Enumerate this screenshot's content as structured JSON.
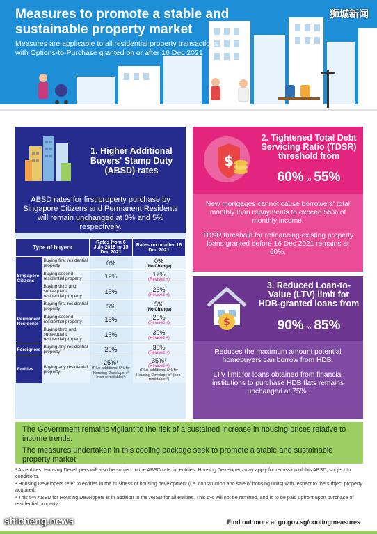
{
  "header": {
    "title": "Measures to promote a stable and sustainable property market",
    "subtitle": "Measures are applicable to all residential property transactions with Options-to-Purchase granted on or after 16 Dec 2021",
    "watermark": "狮城新闻"
  },
  "section1": {
    "title": "1. Higher Additional Buyers' Stamp Duty (ABSD) rates",
    "intro_before": "ABSD rates for first property purchase by Singapore Citizens and Permanent Residents will remain ",
    "intro_underlined": "unchanged",
    "intro_after": " at 0% and 5% respectively.",
    "table": {
      "col_buyers": "Type of buyers",
      "col_from": "Rates from 6 July 2018 to 15 Dec 2021",
      "col_after": "Rates on or after 16 Dec 2021",
      "groups": [
        {
          "group": "Singapore Citizens",
          "rows": [
            {
              "type": "Buying first residential property",
              "from": "0%",
              "after": "0%",
              "change": "(No Change)"
            },
            {
              "type": "Buying second residential property",
              "from": "12%",
              "after": "17%",
              "change": "(Revised +)"
            },
            {
              "type": "Buying third and subsequent residential property",
              "from": "15%",
              "after": "25%",
              "change": "(Revised +)"
            }
          ]
        },
        {
          "group": "Permanent Residents",
          "rows": [
            {
              "type": "Buying first residential property",
              "from": "5%",
              "after": "5%",
              "change": "(No Change)"
            },
            {
              "type": "Buying second residential property",
              "from": "15%",
              "after": "25%",
              "change": "(Revised +)"
            },
            {
              "type": "Buying third and subsequent residential property",
              "from": "15%",
              "after": "30%",
              "change": "(Revised +)"
            }
          ]
        },
        {
          "group": "Foreigners",
          "rows": [
            {
              "type": "Buying any residential property",
              "from": "20%",
              "after": "30%",
              "change": "(Revised +)"
            }
          ]
        },
        {
          "group": "Entities",
          "rows": [
            {
              "type": "Buying any residential property",
              "from": "25%¹",
              "from_note": "(Plus additional 5% for Housing Developers² (non-remittable)³)",
              "after": "35%¹",
              "change": "(Revised +)",
              "after_note": "(Plus additional 5% for Housing Developers² (non-remittable)³)"
            }
          ]
        }
      ]
    }
  },
  "section2": {
    "title": "2. Tightened Total Debt Servicing Ratio (TDSR) threshold from",
    "pct_from": "60%",
    "pct_to": "55%",
    "to_word": "to",
    "para1": "New mortgages cannot cause borrowers' total monthly loan repayments to exceed 55% of monthly income.",
    "para2": "TDSR threshold for refinancing existing property loans granted before 16 Dec 2021 remains at 60%."
  },
  "section3": {
    "title": "3. Reduced Loan-to-Value (LTV) limit for HDB-granted loans from",
    "pct_from": "90%",
    "pct_to": "85%",
    "to_word": "to",
    "para1": "Reduces the maximum amount potential homebuyers can borrow from HDB.",
    "para2": "LTV limit for loans obtained from financial institutions to purchase HDB flats remains unchanged at 75%."
  },
  "green_box": {
    "para1": "The Government remains vigilant to the risk of a sustained increase in housing prices relative to income trends.",
    "para2": "The measures undertaken in this cooling package seek to promote a stable and sustainable property market."
  },
  "footnotes": [
    "¹ As entities, Housing Developers will also be subject to the ABSD rate for entities. Housing Developers may apply for remission of this ABSD, subject to conditions.",
    "² Housing Developers refer to entities in the business of housing development (i.e. construction and sale of housing units) with respect to the subject property acquired.",
    "³ This 5% ABSD for Housing Developers is in addition to the ABSD for all entities. This 5% will not be remitted, and is to be paid upfront upon purchase of residential property."
  ],
  "footer": {
    "find_out": "Find out more at go.gov.sg/coolingmeasures",
    "watermark": "shicheng.news"
  },
  "colors": {
    "header_blue": "#1e8fd6",
    "navy": "#262c8e",
    "pink": "#e4257f",
    "purple": "#6b3590",
    "green": "#9ccf62"
  }
}
